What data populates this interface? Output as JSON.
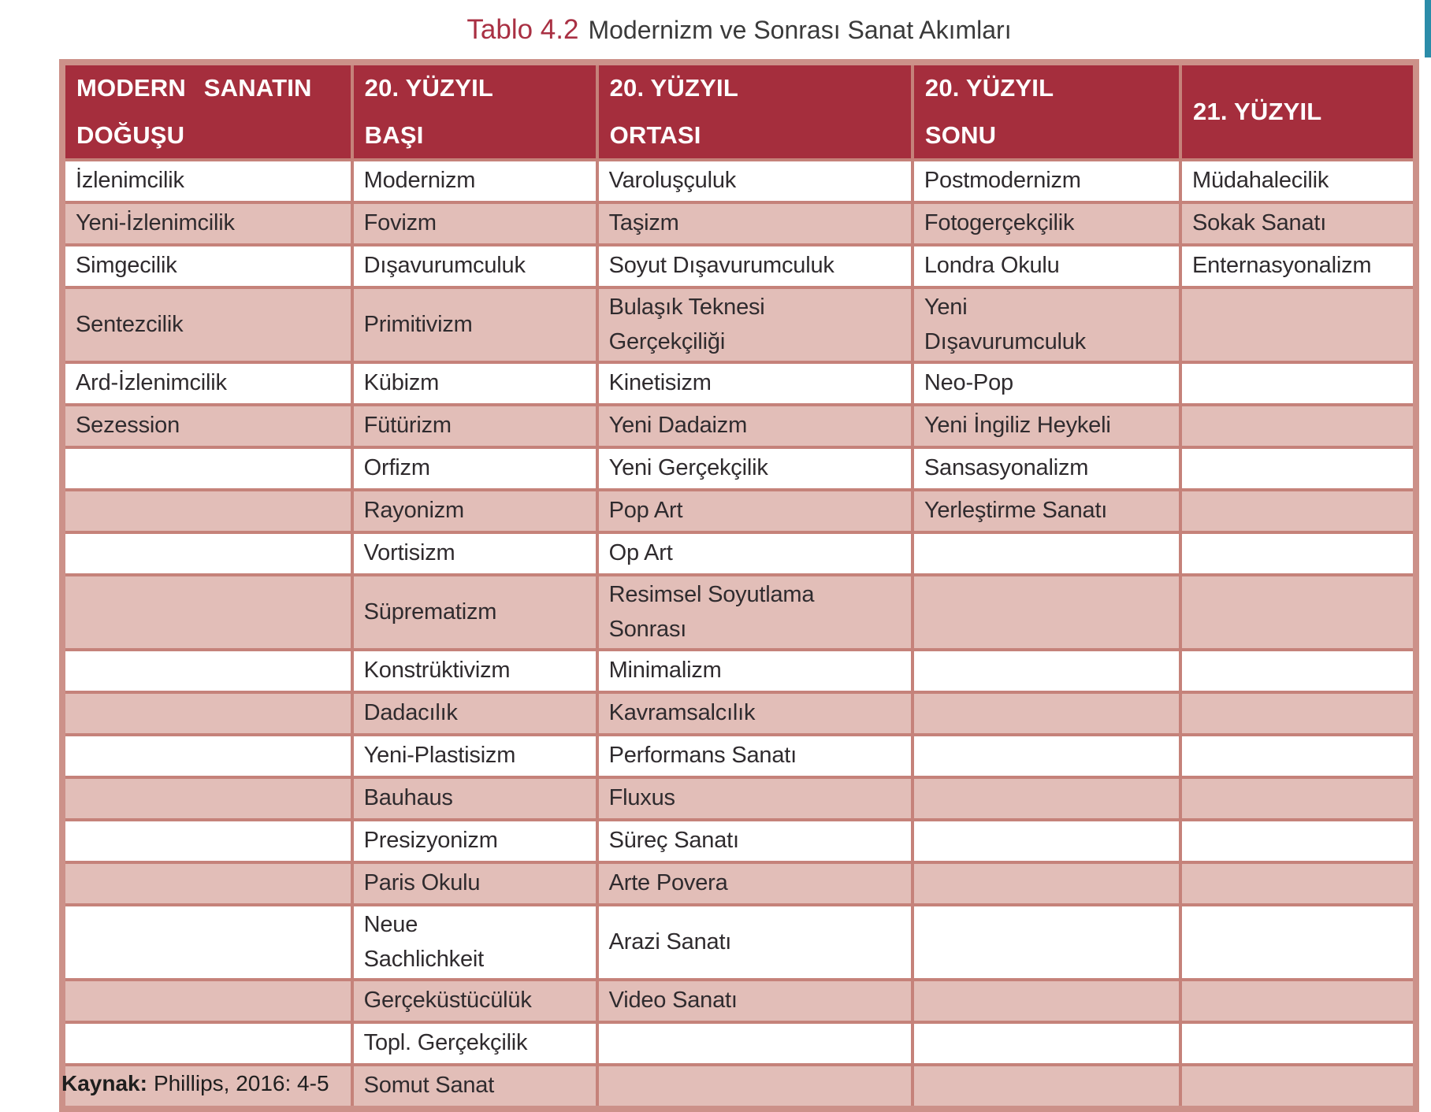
{
  "caption": {
    "label": "Tablo 4.2",
    "text": "Modernizm ve Sonrası Sanat Akımları"
  },
  "source": {
    "label": "Kaynak:",
    "text": "Phillips, 2016: 4-5"
  },
  "colors": {
    "header_bg": "#a52e3d",
    "header_text": "#ffffff",
    "row_pink": "#e2beb8",
    "row_white": "#ffffff",
    "grid_border": "#c5827a",
    "outer_frame": "#cc9189",
    "caption_accent": "#a93043",
    "body_text": "#2f2b2e",
    "corner_accent": "#2b8ca9"
  },
  "table": {
    "column_widths_pct": [
      21.4,
      18.1,
      23.3,
      19.8,
      17.4
    ],
    "headers": [
      {
        "lines": [
          "MODERN SANATIN",
          "DOĞUŞU"
        ]
      },
      {
        "lines": [
          "20. YÜZYIL",
          "BAŞI"
        ]
      },
      {
        "lines": [
          "20. YÜZYIL",
          "ORTASI"
        ]
      },
      {
        "lines": [
          "20. YÜZYIL",
          "SONU"
        ]
      },
      {
        "lines": [
          "21. YÜZYIL"
        ]
      }
    ],
    "rows": [
      {
        "shaded": false,
        "cells": [
          "İzlenimcilik",
          "Modernizm",
          "Varoluşçuluk",
          "Postmodernizm",
          "Müdahalecilik"
        ]
      },
      {
        "shaded": true,
        "cells": [
          "Yeni-İzlenimcilik",
          "Fovizm",
          "Taşizm",
          "Fotogerçekçilik",
          "Sokak Sanatı"
        ]
      },
      {
        "shaded": false,
        "cells": [
          "Simgecilik",
          "Dışavurumculuk",
          "Soyut Dışavurumculuk",
          "Londra Okulu",
          "Enternasyonalizm"
        ]
      },
      {
        "shaded": true,
        "cells": [
          "Sentezcilik",
          "Primitivizm",
          "Bulaşık Teknesi\nGerçekçiliği",
          "Yeni\nDışavurumculuk",
          ""
        ]
      },
      {
        "shaded": false,
        "cells": [
          "Ard-İzlenimcilik",
          "Kübizm",
          "Kinetisizm",
          "Neo-Pop",
          ""
        ]
      },
      {
        "shaded": true,
        "cells": [
          "Sezession",
          "Fütürizm",
          "Yeni Dadaizm",
          "Yeni İngiliz Heykeli",
          ""
        ]
      },
      {
        "shaded": false,
        "cells": [
          "",
          "Orfizm",
          "Yeni Gerçekçilik",
          "Sansasyonalizm",
          ""
        ]
      },
      {
        "shaded": true,
        "cells": [
          "",
          "Rayonizm",
          "Pop Art",
          "Yerleştirme Sanatı",
          ""
        ]
      },
      {
        "shaded": false,
        "cells": [
          "",
          "Vortisizm",
          "Op Art",
          "",
          ""
        ]
      },
      {
        "shaded": true,
        "cells": [
          "",
          "Süprematizm",
          "Resimsel Soyutlama\nSonrası",
          "",
          ""
        ]
      },
      {
        "shaded": false,
        "cells": [
          "",
          "Konstrüktivizm",
          "Minimalizm",
          "",
          ""
        ]
      },
      {
        "shaded": true,
        "cells": [
          "",
          "Dadacılık",
          "Kavramsalcılık",
          "",
          ""
        ]
      },
      {
        "shaded": false,
        "cells": [
          "",
          "Yeni-Plastisizm",
          "Performans Sanatı",
          "",
          ""
        ]
      },
      {
        "shaded": true,
        "cells": [
          "",
          "Bauhaus",
          "Fluxus",
          "",
          ""
        ]
      },
      {
        "shaded": false,
        "cells": [
          "",
          "Presizyonizm",
          "Süreç Sanatı",
          "",
          ""
        ]
      },
      {
        "shaded": true,
        "cells": [
          "",
          "Paris Okulu",
          "Arte Povera",
          "",
          ""
        ]
      },
      {
        "shaded": false,
        "cells": [
          "",
          "Neue\nSachlichkeit",
          "Arazi Sanatı",
          "",
          ""
        ]
      },
      {
        "shaded": true,
        "cells": [
          "",
          "Gerçeküstücülük",
          "Video Sanatı",
          "",
          ""
        ]
      },
      {
        "shaded": false,
        "cells": [
          "",
          "Topl. Gerçekçilik",
          "",
          "",
          ""
        ]
      },
      {
        "shaded": true,
        "cells": [
          "",
          "Somut Sanat",
          "",
          "",
          ""
        ]
      }
    ]
  }
}
